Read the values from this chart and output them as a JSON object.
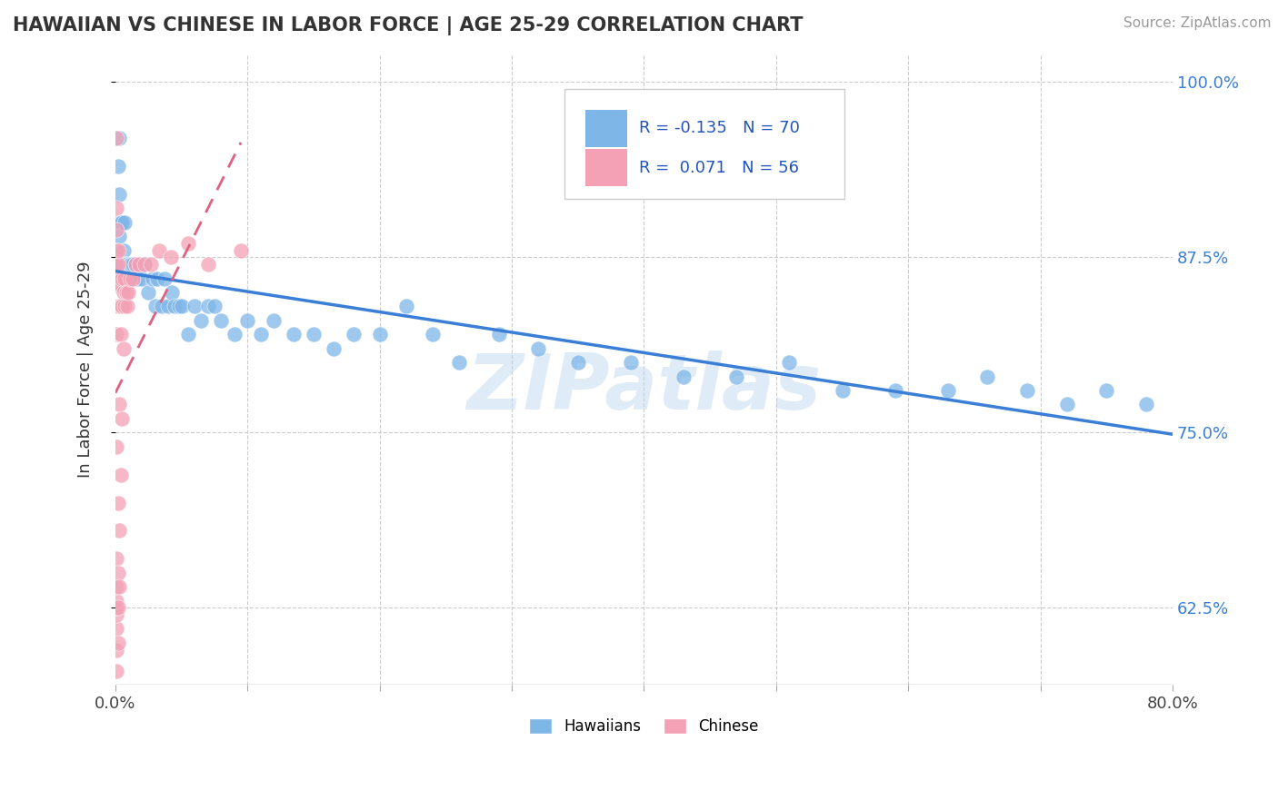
{
  "title": "HAWAIIAN VS CHINESE IN LABOR FORCE | AGE 25-29 CORRELATION CHART",
  "source": "Source: ZipAtlas.com",
  "ylabel": "In Labor Force | Age 25-29",
  "xlim": [
    0.0,
    0.8
  ],
  "ylim": [
    0.57,
    1.02
  ],
  "yticks": [
    0.625,
    0.75,
    0.875,
    1.0
  ],
  "yticklabels": [
    "62.5%",
    "75.0%",
    "87.5%",
    "100.0%"
  ],
  "hawaiian_R": -0.135,
  "hawaiian_N": 70,
  "chinese_R": 0.071,
  "chinese_N": 56,
  "hawaiian_color": "#7eb6e8",
  "chinese_color": "#f4a0b5",
  "hawaiian_trend_color": "#3a7fd5",
  "chinese_trend_color": "#e06080",
  "hawaiian_x": [
    0.002,
    0.002,
    0.002,
    0.003,
    0.003,
    0.003,
    0.003,
    0.004,
    0.004,
    0.005,
    0.005,
    0.006,
    0.007,
    0.007,
    0.008,
    0.009,
    0.01,
    0.011,
    0.012,
    0.013,
    0.014,
    0.015,
    0.017,
    0.018,
    0.02,
    0.022,
    0.025,
    0.028,
    0.03,
    0.032,
    0.035,
    0.037,
    0.04,
    0.043,
    0.045,
    0.048,
    0.05,
    0.055,
    0.06,
    0.065,
    0.07,
    0.075,
    0.08,
    0.09,
    0.1,
    0.11,
    0.12,
    0.135,
    0.15,
    0.165,
    0.18,
    0.2,
    0.22,
    0.24,
    0.26,
    0.29,
    0.32,
    0.35,
    0.39,
    0.43,
    0.47,
    0.51,
    0.55,
    0.59,
    0.63,
    0.66,
    0.69,
    0.72,
    0.75,
    0.78
  ],
  "hawaiian_y": [
    0.87,
    0.9,
    0.94,
    0.87,
    0.89,
    0.92,
    0.96,
    0.86,
    0.9,
    0.87,
    0.9,
    0.88,
    0.87,
    0.9,
    0.87,
    0.87,
    0.86,
    0.87,
    0.87,
    0.87,
    0.86,
    0.87,
    0.86,
    0.87,
    0.86,
    0.87,
    0.85,
    0.86,
    0.84,
    0.86,
    0.84,
    0.86,
    0.84,
    0.85,
    0.84,
    0.84,
    0.84,
    0.82,
    0.84,
    0.83,
    0.84,
    0.84,
    0.83,
    0.82,
    0.83,
    0.82,
    0.83,
    0.82,
    0.82,
    0.81,
    0.82,
    0.82,
    0.84,
    0.82,
    0.8,
    0.82,
    0.81,
    0.8,
    0.8,
    0.79,
    0.79,
    0.8,
    0.78,
    0.78,
    0.78,
    0.79,
    0.78,
    0.77,
    0.78,
    0.77
  ],
  "chinese_x": [
    0.001,
    0.001,
    0.001,
    0.001,
    0.001,
    0.001,
    0.001,
    0.001,
    0.001,
    0.001,
    0.001,
    0.001,
    0.001,
    0.001,
    0.001,
    0.001,
    0.001,
    0.001,
    0.002,
    0.002,
    0.002,
    0.002,
    0.002,
    0.002,
    0.002,
    0.002,
    0.003,
    0.003,
    0.003,
    0.003,
    0.003,
    0.004,
    0.004,
    0.004,
    0.004,
    0.005,
    0.005,
    0.005,
    0.006,
    0.006,
    0.007,
    0.007,
    0.008,
    0.009,
    0.01,
    0.011,
    0.013,
    0.015,
    0.018,
    0.022,
    0.027,
    0.033,
    0.042,
    0.055,
    0.07,
    0.095
  ],
  "chinese_y": [
    0.58,
    0.595,
    0.61,
    0.62,
    0.625,
    0.63,
    0.64,
    0.66,
    0.74,
    0.82,
    0.84,
    0.855,
    0.86,
    0.87,
    0.88,
    0.895,
    0.91,
    0.96,
    0.6,
    0.625,
    0.65,
    0.7,
    0.84,
    0.855,
    0.87,
    0.88,
    0.64,
    0.68,
    0.77,
    0.84,
    0.86,
    0.72,
    0.82,
    0.84,
    0.855,
    0.76,
    0.84,
    0.86,
    0.81,
    0.85,
    0.84,
    0.86,
    0.85,
    0.84,
    0.85,
    0.86,
    0.86,
    0.87,
    0.87,
    0.87,
    0.87,
    0.88,
    0.875,
    0.885,
    0.87,
    0.88
  ]
}
